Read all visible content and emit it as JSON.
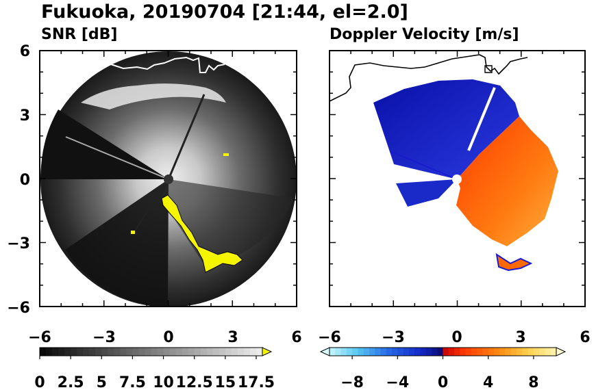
{
  "figure": {
    "title": "Fukuoka, 20190704 [21:44, el=2.0]"
  },
  "colors": {
    "snr_high_flag": "#f5f500",
    "velocity_negative": "#1a1ad0",
    "velocity_positive": "#ff5a00",
    "coastline_dark": "#000000",
    "coastline_light": "#ffffff"
  },
  "chart_data": [
    {
      "type": "heatmap",
      "title": "SNR [dB]",
      "xlim": [
        -6,
        6
      ],
      "ylim": [
        -6,
        6
      ],
      "xticks": [
        "−6",
        "−3",
        "0",
        "3",
        "6"
      ],
      "yticks": [
        "6",
        "3",
        "0",
        "−3",
        "−6"
      ],
      "radar_range": 6,
      "grid": false,
      "colorbar": {
        "min": 0,
        "max": 18,
        "ticks": [
          {
            "value": 0,
            "label": "0"
          },
          {
            "value": 2.5,
            "label": "2.5"
          },
          {
            "value": 5,
            "label": "5"
          },
          {
            "value": 7.5,
            "label": "7.5"
          },
          {
            "value": 10,
            "label": "10"
          },
          {
            "value": 12.5,
            "label": "12.5"
          },
          {
            "value": 15,
            "label": "15"
          },
          {
            "value": 17.5,
            "label": "17.5"
          }
        ],
        "colormap": "gray",
        "extend": "max",
        "extend_color": "#f5f500"
      }
    },
    {
      "type": "heatmap",
      "title": "Doppler Velocity [m/s]",
      "xlim": [
        -6,
        6
      ],
      "ylim": [
        -6,
        6
      ],
      "xticks": [
        "−6",
        "−3",
        "0",
        "3",
        "6"
      ],
      "yticks": [
        "6",
        "3",
        "0",
        "−3",
        "−6"
      ],
      "grid": false,
      "colorbar": {
        "min": -10,
        "max": 10,
        "ticks": [
          {
            "value": -8,
            "label": "−8"
          },
          {
            "value": -4,
            "label": "−4"
          },
          {
            "value": 0,
            "label": "0"
          },
          {
            "value": 4,
            "label": "4"
          },
          {
            "value": 8,
            "label": "8"
          }
        ],
        "colormap": "diverging blue-red",
        "extend": "both",
        "extend_color_min": "#d8fbff",
        "extend_color_max": "#fff8d0"
      }
    }
  ]
}
